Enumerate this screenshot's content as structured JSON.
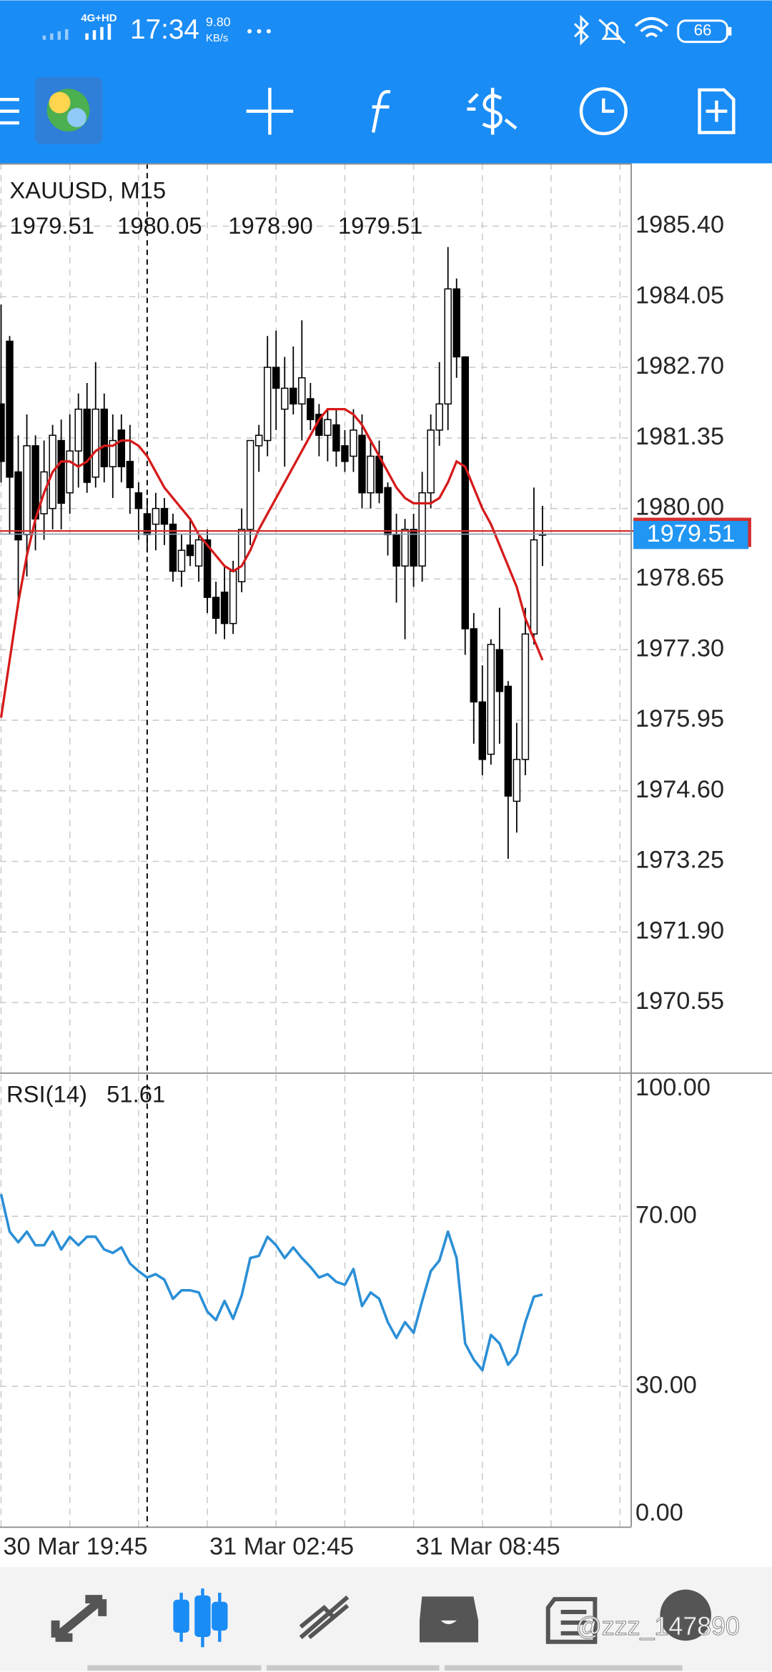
{
  "status_bar": {
    "network": "4G+HD",
    "time": "17:34",
    "speed": "9.80",
    "speed_unit": "KB/s",
    "battery": 66
  },
  "watermark": "@zzz_147890",
  "chart_data": [
    {
      "type": "candlestick",
      "title": "XAUUSD, M15",
      "last_bar_labels": [
        "1979.51",
        "1980.05",
        "1978.90",
        "1979.51"
      ],
      "categories": [
        "30 Mar 19:45",
        null,
        null,
        null,
        null,
        null,
        null,
        null,
        null,
        null,
        null,
        null,
        null,
        null,
        null,
        null,
        null,
        null,
        null,
        null,
        null,
        null,
        null,
        null,
        "31 Mar 02:45",
        null,
        null,
        null,
        null,
        null,
        null,
        null,
        null,
        null,
        null,
        null,
        null,
        null,
        null,
        null,
        null,
        null,
        null,
        null,
        null,
        null,
        null,
        null,
        "31 Mar 08:45",
        null,
        null,
        null,
        null,
        null,
        null,
        null,
        null,
        null,
        null,
        null,
        null,
        null,
        null,
        null
      ],
      "open": [
        1982.0,
        1983.2,
        1980.7,
        1979.5,
        1981.2,
        1979.9,
        1980.0,
        1981.3,
        1980.3,
        1981.1,
        1981.9,
        1980.6,
        1981.9,
        1980.8,
        1981.5,
        1980.9,
        1980.3,
        1979.9,
        1979.7,
        1980.0,
        1979.7,
        1978.8,
        1979.3,
        1978.9,
        1979.4,
        1978.3,
        1978.4,
        1977.8,
        1978.6,
        1979.6,
        1981.2,
        1981.3,
        1982.7,
        1981.9,
        1982.3,
        1982.0,
        1982.1,
        1981.8,
        1981.4,
        1981.6,
        1981.2,
        1981.0,
        1981.4,
        1980.3,
        1981.0,
        1980.4,
        1979.5,
        1978.9,
        1979.6,
        1978.9,
        1980.3,
        1981.5,
        1982.0,
        1984.2,
        1982.9,
        1977.7,
        1976.3,
        1975.3,
        1977.3,
        1976.6,
        1974.4,
        1975.2,
        1977.6,
        1979.51
      ],
      "high": [
        1983.9,
        1983.3,
        1981.4,
        1981.8,
        1981.4,
        1981.3,
        1981.6,
        1981.7,
        1981.8,
        1982.2,
        1982.4,
        1982.8,
        1982.2,
        1981.8,
        1981.8,
        1981.6,
        1980.5,
        1980.2,
        1980.3,
        1980.2,
        1979.9,
        1979.5,
        1979.8,
        1979.5,
        1979.6,
        1978.6,
        1978.9,
        1979.0,
        1980.0,
        1981.3,
        1981.6,
        1983.3,
        1983.4,
        1982.9,
        1983.1,
        1983.6,
        1982.4,
        1982.0,
        1981.9,
        1981.9,
        1981.5,
        1981.9,
        1981.8,
        1981.3,
        1981.3,
        1980.5,
        1979.9,
        1979.8,
        1979.9,
        1980.7,
        1981.8,
        1982.8,
        1985.0,
        1984.4,
        1982.9,
        1978.0,
        1977.0,
        1977.5,
        1978.1,
        1976.7,
        1975.9,
        1978.1,
        1980.4,
        1980.05
      ],
      "low": [
        1980.5,
        1979.5,
        1978.1,
        1978.7,
        1979.2,
        1979.4,
        1979.6,
        1979.6,
        1979.9,
        1980.4,
        1980.3,
        1980.4,
        1980.5,
        1980.2,
        1980.5,
        1979.9,
        1979.4,
        1979.2,
        1979.2,
        1979.3,
        1978.6,
        1978.5,
        1978.9,
        1978.6,
        1978.0,
        1977.6,
        1977.5,
        1977.6,
        1978.4,
        1979.3,
        1980.7,
        1981.0,
        1981.5,
        1980.8,
        1981.8,
        1981.3,
        1981.5,
        1981.0,
        1980.9,
        1980.8,
        1980.7,
        1980.7,
        1980.0,
        1980.0,
        1980.1,
        1979.1,
        1978.2,
        1977.5,
        1978.5,
        1978.6,
        1980.0,
        1981.2,
        1981.5,
        1982.5,
        1977.2,
        1975.5,
        1974.9,
        1975.1,
        1975.5,
        1973.3,
        1973.8,
        1974.9,
        1977.4,
        1978.9
      ],
      "close": [
        1980.9,
        1980.6,
        1979.4,
        1981.2,
        1979.8,
        1980.7,
        1981.4,
        1980.1,
        1981.1,
        1981.9,
        1980.5,
        1981.9,
        1980.8,
        1981.3,
        1980.8,
        1980.4,
        1980.0,
        1979.5,
        1980.0,
        1979.7,
        1978.8,
        1979.2,
        1979.1,
        1979.4,
        1978.3,
        1977.9,
        1977.8,
        1978.8,
        1979.6,
        1981.3,
        1981.4,
        1982.7,
        1982.3,
        1982.3,
        1982.0,
        1982.5,
        1981.7,
        1981.4,
        1981.7,
        1981.1,
        1980.9,
        1981.5,
        1980.3,
        1981.0,
        1980.3,
        1979.5,
        1978.9,
        1979.6,
        1978.9,
        1980.3,
        1981.5,
        1982.0,
        1984.2,
        1982.9,
        1977.7,
        1976.3,
        1975.2,
        1977.4,
        1976.5,
        1974.5,
        1975.2,
        1977.6,
        1979.4,
        1979.51
      ],
      "up_color": "#ffffff",
      "down_color": "#000000",
      "ma": {
        "color": "#d51a1a",
        "values": [
          1976.0,
          1977.1,
          1978.2,
          1979.1,
          1979.8,
          1980.3,
          1980.7,
          1980.9,
          1980.9,
          1980.8,
          1980.9,
          1981.1,
          1981.2,
          1981.2,
          1981.3,
          1981.3,
          1981.2,
          1981.0,
          1980.7,
          1980.4,
          1980.2,
          1980.0,
          1979.8,
          1979.5,
          1979.3,
          1979.1,
          1978.9,
          1978.8,
          1978.9,
          1979.2,
          1979.6,
          1979.9,
          1980.2,
          1980.5,
          1980.8,
          1981.1,
          1981.4,
          1981.7,
          1981.9,
          1981.9,
          1981.9,
          1981.8,
          1981.6,
          1981.3,
          1981.0,
          1980.7,
          1980.4,
          1980.2,
          1980.1,
          1980.1,
          1980.1,
          1980.2,
          1980.5,
          1980.9,
          1980.8,
          1980.4,
          1980.0,
          1979.7,
          1979.3,
          1978.9,
          1978.5,
          1977.9,
          1977.5,
          1977.1
        ]
      },
      "bid": 1979.51,
      "bid_color": "#2196f3",
      "ask": 1979.57,
      "ask_color": "#d32f2f",
      "separator_index": 17,
      "ylim": [
        1969.21,
        1986.6
      ],
      "yticks": [
        {
          "value": 1985.4,
          "label": "1985.40"
        },
        1984.05,
        {
          "value": 1982.7,
          "label": "1982.70"
        },
        1981.35,
        {
          "value": 1980,
          "label": "1980.00"
        },
        1978.65,
        {
          "value": 1977.3,
          "label": "1977.30"
        },
        1975.95,
        {
          "value": 1974.6,
          "label": "1974.60"
        },
        1973.25,
        {
          "value": 1971.9,
          "label": "1971.90"
        },
        1970.55
      ],
      "grid": true
    },
    {
      "type": "line",
      "title": "RSI(14)",
      "color": "#2b8fd6",
      "values": [
        75.2,
        66.4,
        63.9,
        66.4,
        63.2,
        63.2,
        66.4,
        62.2,
        65.2,
        63.2,
        65.2,
        65.2,
        62.2,
        61.4,
        62.7,
        58.9,
        57.1,
        55.6,
        56.4,
        55.1,
        50.6,
        52.6,
        52.6,
        52.1,
        47.6,
        45.6,
        50.1,
        45.9,
        51.4,
        60.2,
        60.7,
        65.2,
        63.2,
        60.2,
        62.7,
        60.2,
        58.1,
        55.6,
        56.4,
        54.6,
        53.9,
        57.6,
        48.9,
        52.1,
        50.6,
        45.1,
        41.4,
        45.1,
        42.6,
        50.1,
        57.1,
        59.6,
        66.4,
        60.2,
        40.1,
        36.3,
        33.8,
        42.1,
        40.1,
        35.1,
        37.6,
        45.1,
        51.1,
        51.61
      ],
      "ylim": [
        -3.0,
        103.3
      ],
      "yticks": [
        {
          "value": 100,
          "label": "100.00"
        },
        {
          "value": 70,
          "label": "70.00"
        },
        {
          "value": 30,
          "label": "30.00"
        },
        {
          "value": 0,
          "label": "0.00"
        }
      ],
      "grid": true
    }
  ]
}
